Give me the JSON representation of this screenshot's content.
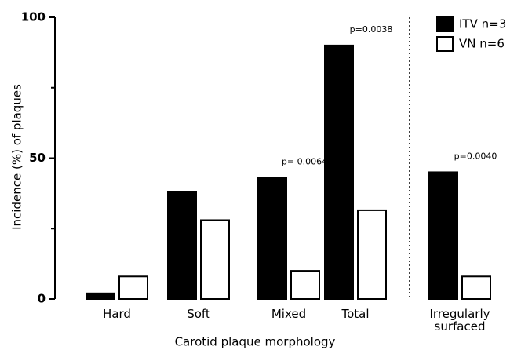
{
  "chart_data": {
    "type": "bar",
    "x_label": "Carotid plaque morphology",
    "y_label": "Incidence (%) of plaques",
    "categories": [
      "Hard",
      "Soft",
      "Mixed",
      "Total",
      "Irregularly surfaced"
    ],
    "series": [
      {
        "name": "ITV n=3",
        "color": "#000000",
        "values": [
          2,
          38,
          43,
          90,
          45
        ]
      },
      {
        "name": "VN n=6",
        "color": "#ffffff",
        "values": [
          8,
          28,
          10,
          31.5,
          8
        ]
      }
    ],
    "annotations": [
      {
        "category": "Mixed",
        "text": "p= 0.0064"
      },
      {
        "category": "Total",
        "text": "p=0.0038"
      },
      {
        "category": "Irregularly surfaced",
        "text": "p=0.0040"
      }
    ],
    "ylim": [
      0,
      100
    ],
    "yticks": [
      0,
      50,
      100
    ],
    "minor_yticks": [
      25,
      75
    ],
    "legend": "upper right"
  }
}
